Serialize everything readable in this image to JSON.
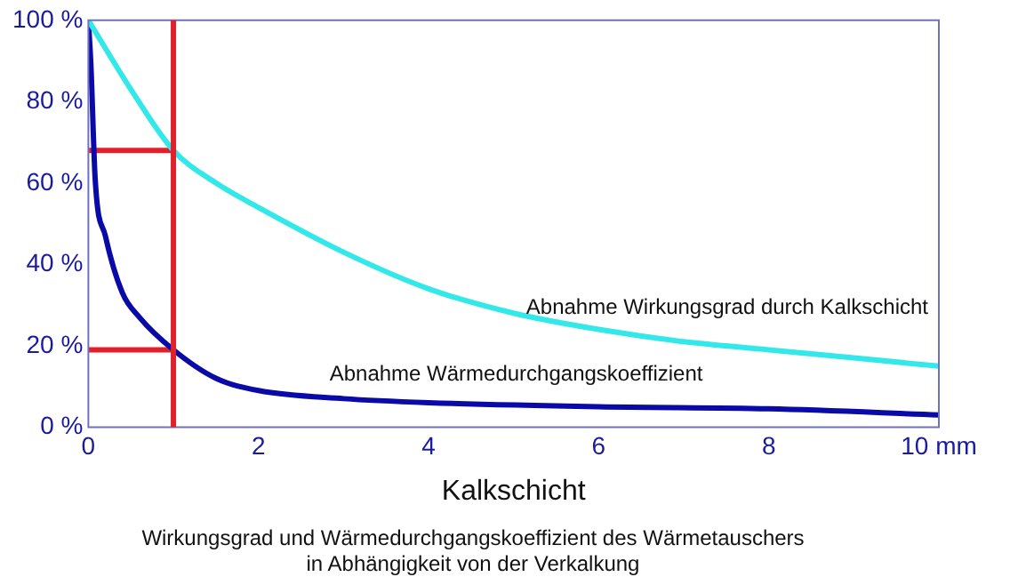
{
  "chart_data": {
    "type": "line",
    "title": "Wirkungsgrad und Wärmedurchgangskoeffizient des Wärmetauschers\nin Abhängigkeit von der Verkalkung",
    "xlabel": "Kalkschicht",
    "xlim": [
      0,
      10
    ],
    "xticks": [
      0,
      2,
      4,
      6,
      8,
      {
        "value": 10,
        "label": "10 mm"
      }
    ],
    "ylim": [
      0,
      100
    ],
    "yticks": [
      {
        "value": 0,
        "label": "0 %"
      },
      {
        "value": 20,
        "label": "20 %"
      },
      {
        "value": 40,
        "label": "40 %"
      },
      {
        "value": 60,
        "label": "60 %"
      },
      {
        "value": 80,
        "label": "80 %"
      },
      {
        "value": 100,
        "label": "100 %"
      }
    ],
    "grid": false,
    "legend": false,
    "marker": "none",
    "line_style": "solid",
    "series": [
      {
        "name": "Abnahme Wirkungsgrad durch Kalkschicht",
        "color": "#33e8e8",
        "x": [
          0,
          0.5,
          1,
          1.5,
          2,
          3,
          4,
          5,
          6,
          7,
          8,
          9,
          10
        ],
        "values": [
          100,
          83,
          68,
          60,
          54,
          43,
          34,
          28,
          24,
          21,
          19,
          17,
          15
        ]
      },
      {
        "name": "Abnahme Wärmedurchgangskoeffizient",
        "color": "#0a0aa8",
        "x": [
          0,
          0.03,
          0.08,
          0.2,
          0.4,
          0.6,
          1,
          1.5,
          2,
          3,
          4,
          6,
          8,
          10
        ],
        "values": [
          100,
          89,
          61,
          47,
          33,
          27,
          19,
          12,
          9,
          7,
          6,
          5,
          4.5,
          3
        ]
      },
      {
        "color": "#e0202a",
        "x": [
          0,
          1
        ],
        "values": [
          68,
          68
        ]
      },
      {
        "color": "#e0202a",
        "x": [
          0,
          1
        ],
        "values": [
          19,
          19
        ]
      }
    ],
    "ref_lines": [
      {
        "axis": "x",
        "value": 1,
        "color": "#e0202a"
      }
    ]
  }
}
